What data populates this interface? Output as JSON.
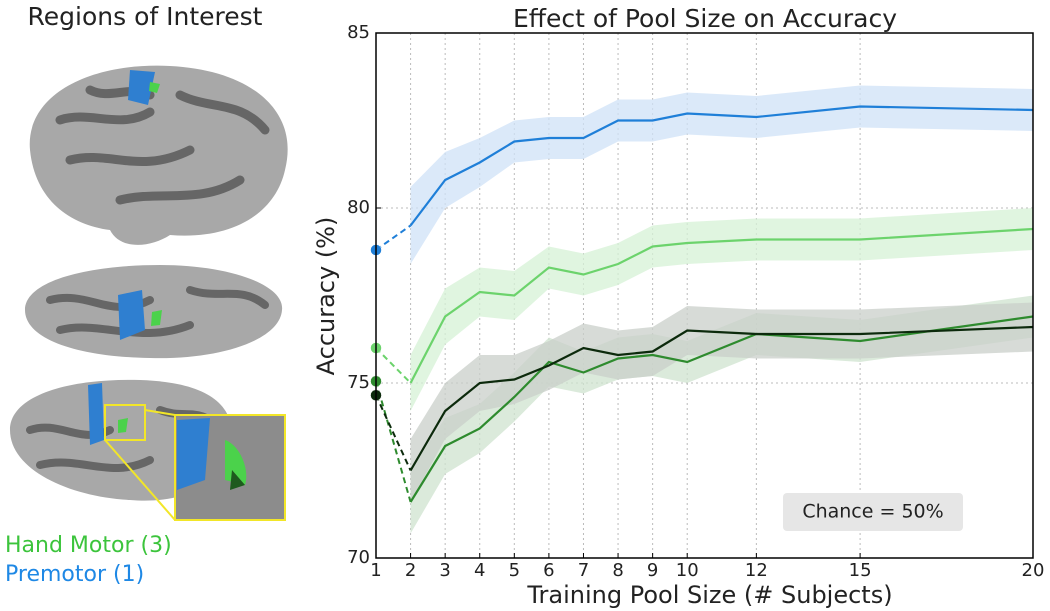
{
  "left_panel": {
    "title": "Regions of Interest",
    "labels": [
      {
        "text": "Hand Motor (3)",
        "color": "#3cc43c"
      },
      {
        "text": "Premotor (1)",
        "color": "#1e88e5"
      }
    ]
  },
  "chart_data": {
    "type": "line",
    "title": "Effect of Pool Size on Accuracy",
    "x_label": "Training Pool Size (# Subjects)",
    "y_label": "Accuracy (%)",
    "x": [
      1,
      2,
      3,
      4,
      5,
      6,
      7,
      8,
      9,
      10,
      12,
      15,
      20
    ],
    "xlim": [
      1,
      20
    ],
    "xticks": [
      1,
      2,
      3,
      4,
      5,
      6,
      7,
      8,
      9,
      10,
      12,
      15,
      20
    ],
    "ylim": [
      70,
      85
    ],
    "yticks": [
      70,
      75,
      80,
      85
    ],
    "grid": true,
    "dashed_first_segment": true,
    "annotation": "Chance = 50%",
    "series": [
      {
        "color": "#1f7fd8",
        "band_color": "#cfe2f7",
        "values": [
          78.8,
          79.5,
          80.8,
          81.3,
          81.9,
          82.0,
          82.0,
          82.5,
          82.5,
          82.7,
          82.6,
          82.9,
          82.8
        ],
        "errors": [
          null,
          1.1,
          0.8,
          0.7,
          0.6,
          0.6,
          0.6,
          0.6,
          0.6,
          0.6,
          0.6,
          0.6,
          0.6
        ]
      },
      {
        "color": "#6cd36c",
        "band_color": "#d6f2d6",
        "values": [
          76.0,
          75.0,
          76.9,
          77.6,
          77.5,
          78.3,
          78.1,
          78.4,
          78.9,
          79.0,
          79.1,
          79.1,
          79.4
        ],
        "errors": [
          null,
          0.8,
          0.8,
          0.7,
          0.7,
          0.6,
          0.6,
          0.6,
          0.6,
          0.6,
          0.6,
          0.6,
          0.6
        ]
      },
      {
        "color": "#2e8b2e",
        "band_color": "#cfe3cf",
        "values": [
          75.05,
          71.6,
          73.2,
          73.7,
          74.6,
          75.6,
          75.3,
          75.7,
          75.8,
          75.6,
          76.4,
          76.2,
          76.9
        ],
        "errors": [
          null,
          0.9,
          0.8,
          0.7,
          0.7,
          0.7,
          0.6,
          0.6,
          0.6,
          0.6,
          0.6,
          0.6,
          0.6
        ]
      },
      {
        "color": "#0c2a0c",
        "band_color": "#c9cfc9",
        "values": [
          74.65,
          72.5,
          74.2,
          75.0,
          75.1,
          75.5,
          76.0,
          75.8,
          75.9,
          76.5,
          76.4,
          76.4,
          76.6
        ],
        "errors": [
          null,
          0.9,
          0.8,
          0.8,
          0.7,
          0.7,
          0.7,
          0.7,
          0.7,
          0.7,
          0.7,
          0.7,
          0.7
        ]
      }
    ]
  }
}
